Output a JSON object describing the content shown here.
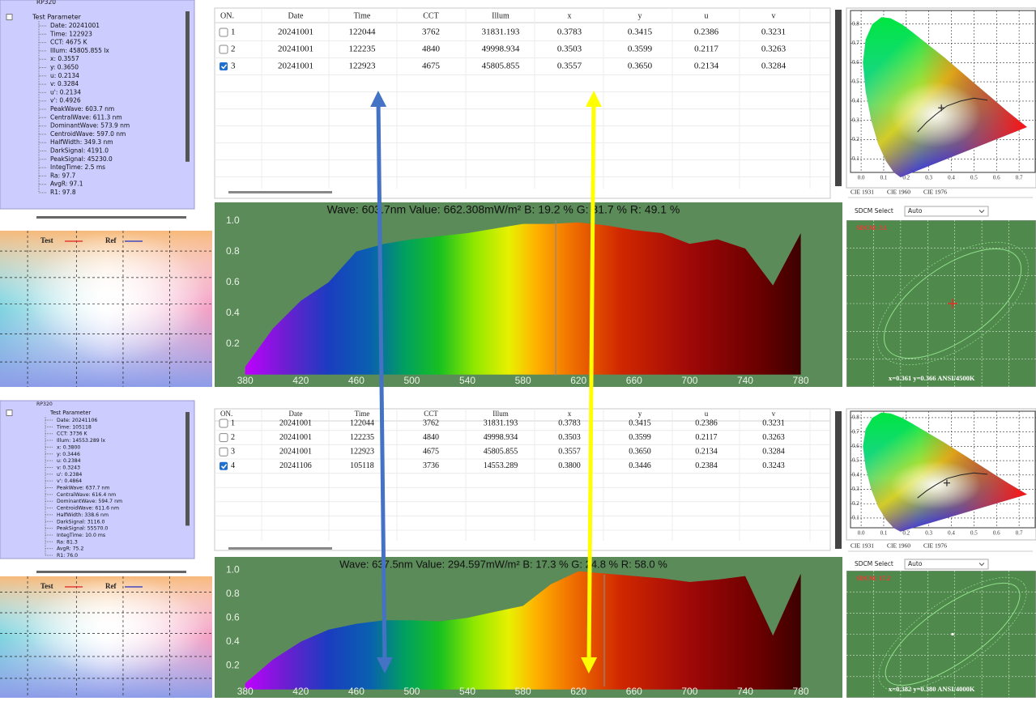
{
  "panels": [
    {
      "tree": {
        "root": "RP320",
        "group": "Test Parameter",
        "items": [
          "Date: 20241001",
          "Time: 122923",
          "CCT: 4675 K",
          "Illum: 45805.855 lx",
          "x: 0.3557",
          "y: 0.3650",
          "u: 0.2134",
          "v: 0.3284",
          "u': 0.2134",
          "v': 0.4926",
          "PeakWave: 603.7 nm",
          "CentralWave: 611.3 nm",
          "DominantWave: 573.9 nm",
          "CentroidWave: 597.0 nm",
          "HalfWidth: 349.3 nm",
          "DarkSignal: 4191.0",
          "PeakSignal: 45230.0",
          "IntegTime: 2.5 ms",
          "Ra: 97.7",
          "AvgR: 97.1",
          "R1: 97.8"
        ]
      },
      "legend": {
        "test": "Test",
        "ref": "Ref"
      },
      "table": {
        "headers": [
          "ON.",
          "Date",
          "Time",
          "CCT",
          "Illum",
          "x",
          "y",
          "u",
          "v"
        ],
        "rows": [
          {
            "no": "1",
            "checked": false,
            "cells": [
              "20241001",
              "122044",
              "3762",
              "31831.193",
              "0.3783",
              "0.3415",
              "0.2386",
              "0.3231"
            ]
          },
          {
            "no": "2",
            "checked": false,
            "cells": [
              "20241001",
              "122235",
              "4840",
              "49998.934",
              "0.3503",
              "0.3599",
              "0.2117",
              "0.3263"
            ]
          },
          {
            "no": "3",
            "checked": true,
            "cells": [
              "20241001",
              "122923",
              "4675",
              "45805.855",
              "0.3557",
              "0.3650",
              "0.2134",
              "0.3284"
            ]
          }
        ]
      },
      "spectrum": {
        "header": "Wave: 603.7nm Value: 662.308mW/m² B: 19.2 % G: 31.7 % R: 49.1 %",
        "x": [
          380,
          400,
          420,
          440,
          460,
          480,
          500,
          520,
          540,
          560,
          580,
          600,
          620,
          640,
          660,
          680,
          700,
          720,
          740,
          760,
          780
        ],
        "values": [
          0.05,
          0.3,
          0.48,
          0.6,
          0.8,
          0.85,
          0.88,
          0.9,
          0.92,
          0.95,
          0.98,
          0.98,
          0.99,
          0.97,
          0.94,
          0.92,
          0.85,
          0.88,
          0.82,
          0.58,
          0.92
        ],
        "xlim": [
          358,
          810
        ],
        "ylim": [
          -0.08,
          1.12
        ],
        "xticks": [
          380,
          420,
          460,
          500,
          540,
          580,
          620,
          660,
          700,
          740,
          780
        ],
        "yticks": [
          0.2,
          0.4,
          0.6,
          0.8,
          {
            "value": 1,
            "label": "1.0"
          }
        ]
      },
      "cie": {
        "xlim": [
          -0.047,
          0.775
        ],
        "ylim": [
          0.03,
          0.87
        ],
        "xticks": [
          {
            "value": 0,
            "label": "0.0"
          },
          0.1,
          0.2,
          0.3,
          0.4,
          0.5,
          0.6,
          0.7
        ],
        "yticks": [
          0.1,
          0.2,
          0.3,
          0.4,
          0.5,
          0.6,
          0.7,
          0.8
        ],
        "tabs": [
          "CIE 1931",
          "CIE 1960",
          "CIE 1976"
        ]
      },
      "sdcm": {
        "select_label": "SDCM Select",
        "select_value": "Auto",
        "value_text": "SDCM: 3.1",
        "coords_text": "x=0.361 y=0.366 ANSI/4500K"
      }
    },
    {
      "tree": {
        "root": "RP320",
        "group": "Test Parameter",
        "items": [
          "Date: 20241106",
          "Time: 105118",
          "CCT: 3736 K",
          "Illum: 14553.289 lx",
          "x: 0.3800",
          "y: 0.3446",
          "u: 0.2384",
          "v: 0.3243",
          "u': 0.2384",
          "v': 0.4864",
          "PeakWave: 637.7 nm",
          "CentralWave: 616.4 nm",
          "DominantWave: 594.7 nm",
          "CentroidWave: 611.6 nm",
          "HalfWidth: 338.6 nm",
          "DarkSignal: 3116.0",
          "PeakSignal: 55570.0",
          "IntegTime: 10.0 ms",
          "Ra: 81.3",
          "AvgR: 75.2",
          "R1: 76.0"
        ]
      },
      "legend": {
        "test": "Test",
        "ref": "Ref"
      },
      "table": {
        "headers": [
          "ON.",
          "Date",
          "Time",
          "CCT",
          "Illum",
          "x",
          "y",
          "u",
          "v"
        ],
        "rows": [
          {
            "no": "1",
            "checked": false,
            "cells": [
              "20241001",
              "122044",
              "3762",
              "31831.193",
              "0.3783",
              "0.3415",
              "0.2386",
              "0.3231"
            ]
          },
          {
            "no": "2",
            "checked": false,
            "cells": [
              "20241001",
              "122235",
              "4840",
              "49998.934",
              "0.3503",
              "0.3599",
              "0.2117",
              "0.3263"
            ]
          },
          {
            "no": "3",
            "checked": false,
            "cells": [
              "20241001",
              "122923",
              "4675",
              "45805.855",
              "0.3557",
              "0.3650",
              "0.2134",
              "0.3284"
            ]
          },
          {
            "no": "4",
            "checked": true,
            "cells": [
              "20241106",
              "105118",
              "3736",
              "14553.289",
              "0.3800",
              "0.3446",
              "0.2384",
              "0.3243"
            ]
          }
        ]
      },
      "spectrum": {
        "header": "Wave: 637.5nm Value: 294.597mW/m² B: 17.3 % G: 24.8 % R: 58.0 %",
        "x": [
          380,
          400,
          420,
          440,
          460,
          480,
          500,
          520,
          540,
          560,
          580,
          600,
          620,
          640,
          660,
          680,
          700,
          720,
          740,
          760,
          780
        ],
        "values": [
          0.05,
          0.25,
          0.4,
          0.5,
          0.55,
          0.58,
          0.58,
          0.57,
          0.6,
          0.65,
          0.7,
          0.88,
          0.99,
          0.97,
          0.95,
          0.93,
          0.9,
          0.92,
          0.95,
          0.45,
          0.97
        ],
        "xlim": [
          358,
          810
        ],
        "ylim": [
          -0.07,
          1.11
        ],
        "xticks": [
          380,
          420,
          460,
          500,
          540,
          580,
          620,
          660,
          700,
          740,
          780
        ],
        "yticks": [
          0.2,
          0.4,
          0.6,
          0.8,
          {
            "value": 1,
            "label": "1.0"
          }
        ]
      },
      "cie": {
        "xlim": [
          -0.047,
          0.775
        ],
        "ylim": [
          0.032,
          0.845
        ],
        "xticks": [
          {
            "value": 0,
            "label": "0.0"
          },
          0.1,
          0.2,
          0.3,
          0.4,
          0.5,
          0.6,
          0.7
        ],
        "yticks": [
          0.1,
          0.2,
          0.3,
          0.4,
          0.5,
          0.6,
          0.7,
          0.8
        ],
        "tabs": [
          "CIE 1931",
          "CIE 1960",
          "CIE 1976"
        ]
      },
      "sdcm": {
        "select_label": "SDCM Select",
        "select_value": "Auto",
        "value_text": "SDCM: 17.2",
        "coords_text": "x=0.382 y=0.380 ANSI/4000K"
      }
    }
  ]
}
